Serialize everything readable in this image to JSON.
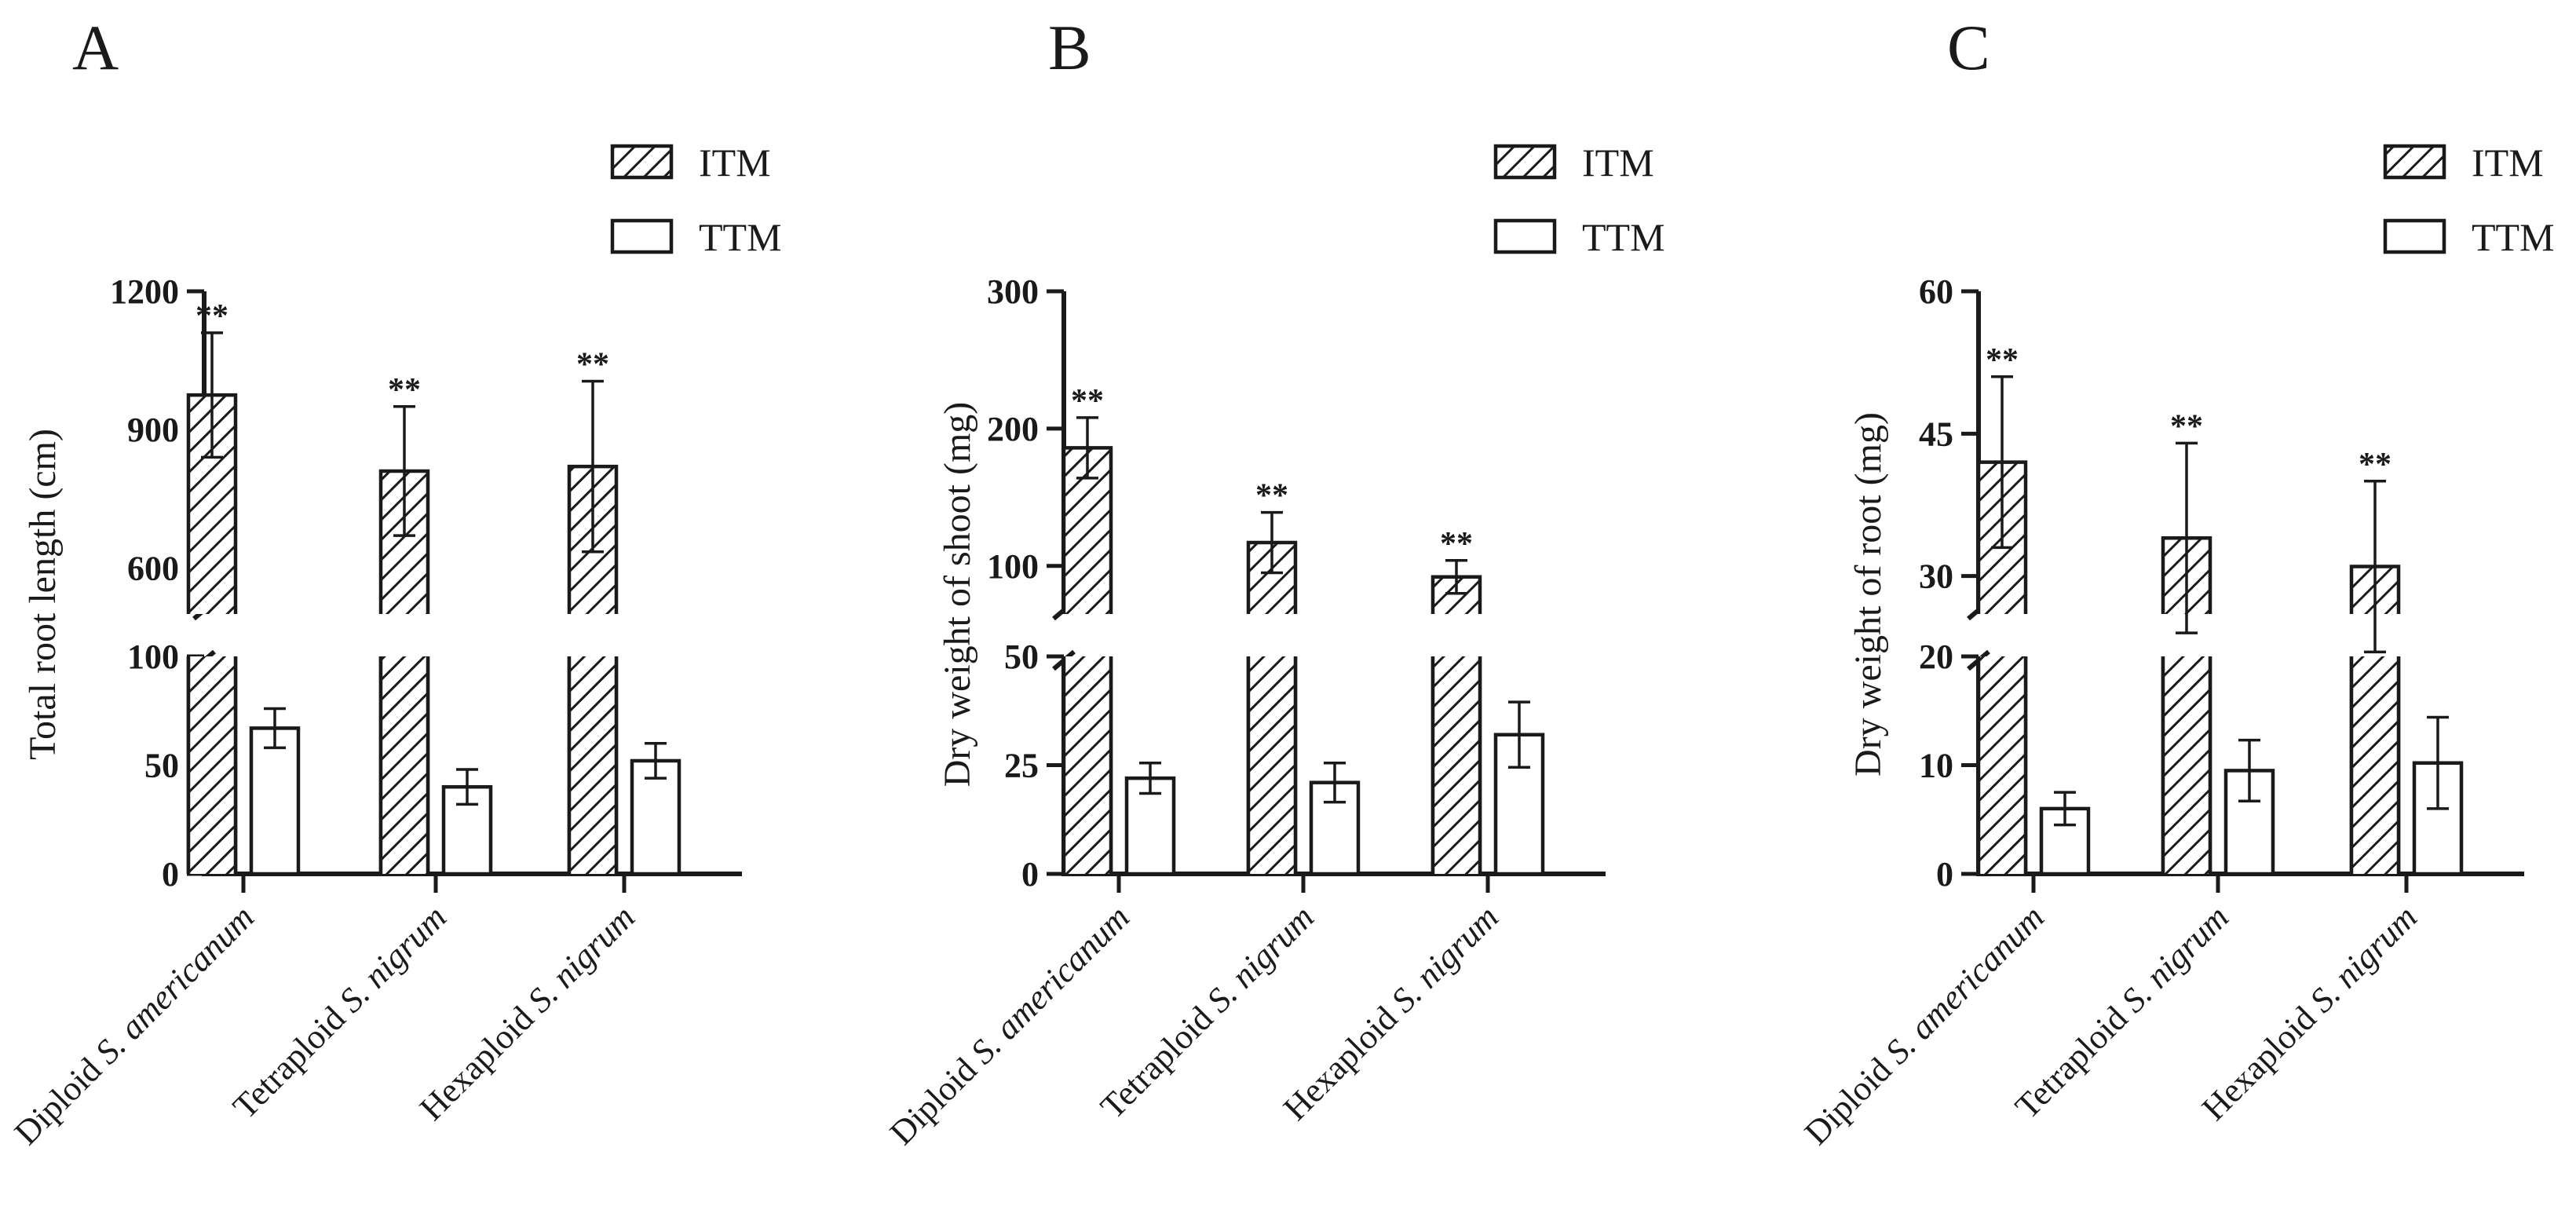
{
  "chart_data": [
    {
      "panel": "A",
      "type": "bar",
      "title": "",
      "ylabel": "Total root length (cm)",
      "categories": [
        {
          "plain": "Diploid ",
          "italic": "S. americanum"
        },
        {
          "plain": "Tetraploid ",
          "italic": "S. nigrum"
        },
        {
          "plain": "Hexaploid ",
          "italic": "S. nigrum"
        }
      ],
      "legend": [
        "ITM",
        "TTM"
      ],
      "series": [
        {
          "name": "ITM",
          "pattern": "hatched",
          "values": [
            975,
            810,
            820
          ],
          "errors": [
            135,
            140,
            185
          ],
          "annotation": [
            "**",
            "**",
            "**"
          ]
        },
        {
          "name": "TTM",
          "pattern": "open",
          "values": [
            67,
            40,
            52
          ],
          "errors": [
            9,
            8,
            8
          ],
          "annotation": [
            "",
            "",
            ""
          ]
        }
      ],
      "y_axis": {
        "broken": true,
        "lower_range": [
          0,
          100
        ],
        "upper_range": [
          500,
          1200
        ],
        "lower_ticks": [
          0,
          50,
          100
        ],
        "upper_ticks": [
          600,
          900,
          1200
        ]
      }
    },
    {
      "panel": "B",
      "type": "bar",
      "title": "",
      "ylabel": "Dry weight of shoot (mg)",
      "categories": [
        {
          "plain": "Diploid ",
          "italic": "S. americanum"
        },
        {
          "plain": "Tetraploid ",
          "italic": "S. nigrum"
        },
        {
          "plain": "Hexaploid ",
          "italic": "S. nigrum"
        }
      ],
      "legend": [
        "ITM",
        "TTM"
      ],
      "series": [
        {
          "name": "ITM",
          "pattern": "hatched",
          "values": [
            186,
            117,
            92
          ],
          "errors": [
            22,
            22,
            12
          ],
          "annotation": [
            "**",
            "**",
            "**"
          ]
        },
        {
          "name": "TTM",
          "pattern": "open",
          "values": [
            22,
            21,
            32
          ],
          "errors": [
            3.5,
            4.5,
            7.5
          ],
          "annotation": [
            "",
            "",
            ""
          ]
        }
      ],
      "y_axis": {
        "broken": true,
        "lower_range": [
          0,
          50
        ],
        "upper_range": [
          65,
          300
        ],
        "lower_ticks": [
          0,
          25,
          50
        ],
        "upper_ticks": [
          100,
          200,
          300
        ]
      }
    },
    {
      "panel": "C",
      "type": "bar",
      "title": "",
      "ylabel": "Dry weight of root (mg)",
      "categories": [
        {
          "plain": "Diploid ",
          "italic": "S. americanum"
        },
        {
          "plain": "Tetraploid ",
          "italic": "S. nigrum"
        },
        {
          "plain": "Hexaploid ",
          "italic": "S. nigrum"
        }
      ],
      "legend": [
        "ITM",
        "TTM"
      ],
      "series": [
        {
          "name": "ITM",
          "pattern": "hatched",
          "values": [
            42,
            34,
            31
          ],
          "errors": [
            9,
            10,
            9
          ],
          "annotation": [
            "**",
            "**",
            "**"
          ]
        },
        {
          "name": "TTM",
          "pattern": "open",
          "values": [
            6,
            9.5,
            10.2
          ],
          "errors": [
            1.5,
            2.8,
            4.2
          ],
          "annotation": [
            "",
            "",
            ""
          ]
        }
      ],
      "y_axis": {
        "broken": true,
        "lower_range": [
          0,
          20
        ],
        "upper_range": [
          26,
          60
        ],
        "lower_ticks": [
          0,
          10,
          20
        ],
        "upper_ticks": [
          30,
          45,
          60
        ]
      }
    }
  ]
}
